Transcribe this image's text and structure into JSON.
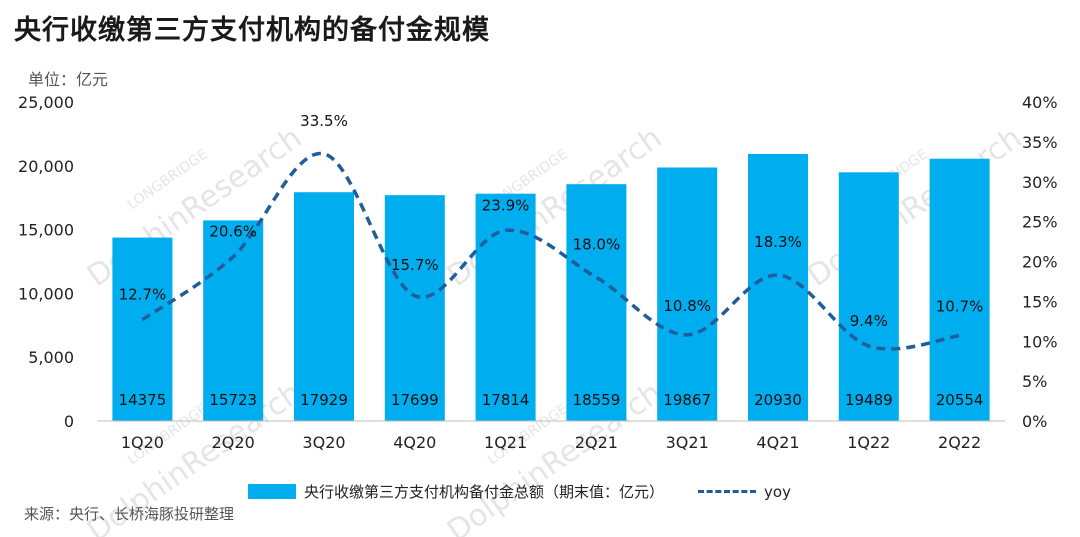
{
  "header": {
    "title": "央行收缴第三方支付机构的备付金规模",
    "unit": "单位：亿元",
    "source": "来源：央行、长桥海豚投研整理"
  },
  "watermark": {
    "main": "DolphinResearch",
    "sub": "LONGBRIDGE"
  },
  "colors": {
    "bar": "#00adef",
    "line": "#1f5e9a"
  },
  "chart_data": {
    "type": "bar",
    "title": "央行收缴第三方支付机构的备付金规模",
    "ylabel": "单位：亿元",
    "categories": [
      "1Q20",
      "2Q20",
      "3Q20",
      "4Q20",
      "1Q21",
      "2Q21",
      "3Q21",
      "4Q21",
      "1Q22",
      "2Q22"
    ],
    "series": [
      {
        "name": "央行收缴第三方支付机构备付金总额（期末值：亿元）",
        "type": "bar",
        "axis": "left",
        "values": [
          14375,
          15723,
          17929,
          17699,
          17814,
          18559,
          19867,
          20930,
          19489,
          20554
        ],
        "labels": [
          "14375",
          "15723",
          "17929",
          "17699",
          "17814",
          "18559",
          "19867",
          "20930",
          "19489",
          "20554"
        ]
      },
      {
        "name": "yoy",
        "type": "line",
        "style": "dashed",
        "smooth": true,
        "axis": "right",
        "values": [
          12.7,
          20.6,
          33.5,
          15.7,
          23.9,
          18.0,
          10.8,
          18.3,
          9.4,
          10.7
        ],
        "labels": [
          "12.7%",
          "20.6%",
          "33.5%",
          "15.7%",
          "23.9%",
          "18.0%",
          "10.8%",
          "18.3%",
          "9.4%",
          "10.7%"
        ]
      }
    ],
    "ylim": [
      0,
      25000
    ],
    "y_ticks": [
      "0",
      "5,000",
      "10,000",
      "15,000",
      "20,000",
      "25,000"
    ],
    "y2lim": [
      0,
      40
    ],
    "y2_ticks": [
      "0%",
      "5%",
      "10%",
      "15%",
      "20%",
      "25%",
      "30%",
      "35%",
      "40%"
    ],
    "grid": false,
    "legend_position": "bottom"
  }
}
